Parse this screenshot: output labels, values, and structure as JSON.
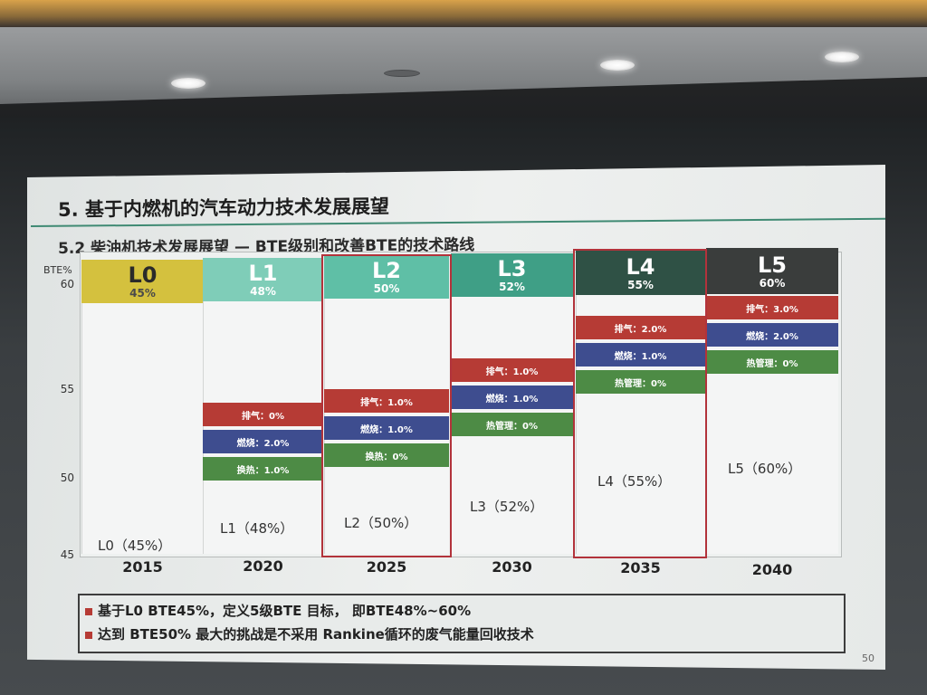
{
  "slide": {
    "title": "5. 基于内燃机的汽车动力技术发展展望",
    "subtitle": "5.2  柴油机技术发展展望 — BTE级别和改善BTE的技术路线",
    "page_number": "50"
  },
  "colors": {
    "L0": "#d4c13e",
    "L1": "#7fcdb8",
    "L2": "#5fbfa6",
    "L3": "#3f9f86",
    "L4": "#2f5145",
    "L5": "#3a3d3c",
    "exhaust": "#b63b35",
    "combustion": "#3e4d8f",
    "thermal": "#4d8b45",
    "highlight": "#b2333b"
  },
  "chart": {
    "y_unit": "BTE%",
    "y_ticks": [
      "60",
      "55",
      "50",
      "45"
    ],
    "columns": [
      {
        "year": "2015",
        "level": "L0",
        "pct": "45%",
        "label": "L0（45%）",
        "bars": []
      },
      {
        "year": "2020",
        "level": "L1",
        "pct": "48%",
        "label": "L1（48%）",
        "bars": [
          {
            "text": "排气：0%"
          },
          {
            "text": "燃烧：2.0%"
          },
          {
            "text": "换热：1.0%"
          }
        ]
      },
      {
        "year": "2025",
        "level": "L2",
        "pct": "50%",
        "label": "L2（50%）",
        "bars": [
          {
            "text": "排气：1.0%"
          },
          {
            "text": "燃烧：1.0%"
          },
          {
            "text": "换热：0%"
          }
        ]
      },
      {
        "year": "2030",
        "level": "L3",
        "pct": "52%",
        "label": "L3（52%）",
        "bars": [
          {
            "text": "排气：1.0%"
          },
          {
            "text": "燃烧：1.0%"
          },
          {
            "text": "热管理：0%"
          }
        ]
      },
      {
        "year": "2035",
        "level": "L4",
        "pct": "55%",
        "label": "L4（55%）",
        "bars": [
          {
            "text": "排气：2.0%"
          },
          {
            "text": "燃烧：1.0%"
          },
          {
            "text": "热管理：0%"
          }
        ]
      },
      {
        "year": "2040",
        "level": "L5",
        "pct": "60%",
        "label": "L5（60%）",
        "bars": [
          {
            "text": "排气：3.0%"
          },
          {
            "text": "燃烧：2.0%"
          },
          {
            "text": "热管理：0%"
          }
        ]
      }
    ]
  },
  "notes": [
    "基于L0 BTE45%，定义5级BTE 目标， 即BTE48%~60%",
    "达到 BTE50% 最大的挑战是不采用 Rankine循环的废气能量回收技术"
  ]
}
